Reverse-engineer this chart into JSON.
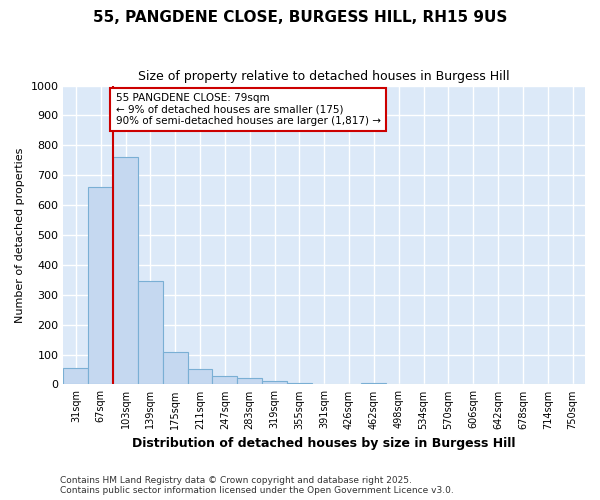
{
  "title1": "55, PANGDENE CLOSE, BURGESS HILL, RH15 9US",
  "title2": "Size of property relative to detached houses in Burgess Hill",
  "xlabel": "Distribution of detached houses by size in Burgess Hill",
  "ylabel": "Number of detached properties",
  "footer1": "Contains HM Land Registry data © Crown copyright and database right 2025.",
  "footer2": "Contains public sector information licensed under the Open Government Licence v3.0.",
  "bin_labels": [
    "31sqm",
    "67sqm",
    "103sqm",
    "139sqm",
    "175sqm",
    "211sqm",
    "247sqm",
    "283sqm",
    "319sqm",
    "355sqm",
    "391sqm",
    "426sqm",
    "462sqm",
    "498sqm",
    "534sqm",
    "570sqm",
    "606sqm",
    "642sqm",
    "678sqm",
    "714sqm",
    "750sqm"
  ],
  "bar_values": [
    55,
    660,
    760,
    345,
    110,
    50,
    28,
    20,
    13,
    5,
    0,
    0,
    5,
    0,
    0,
    0,
    0,
    0,
    0,
    0,
    0
  ],
  "bar_color": "#c5d8f0",
  "bar_edge_color": "#7aafd4",
  "background_color": "#dce9f8",
  "grid_color": "#ffffff",
  "red_line_x": 1.5,
  "ylim": [
    0,
    1000
  ],
  "yticks": [
    0,
    100,
    200,
    300,
    400,
    500,
    600,
    700,
    800,
    900,
    1000
  ],
  "annotation_text": "55 PANGDENE CLOSE: 79sqm\n← 9% of detached houses are smaller (175)\n90% of semi-detached houses are larger (1,817) →",
  "annotation_box_color": "#ffffff",
  "annotation_box_edge": "#cc0000",
  "property_line_color": "#cc0000",
  "fig_bg": "#ffffff"
}
